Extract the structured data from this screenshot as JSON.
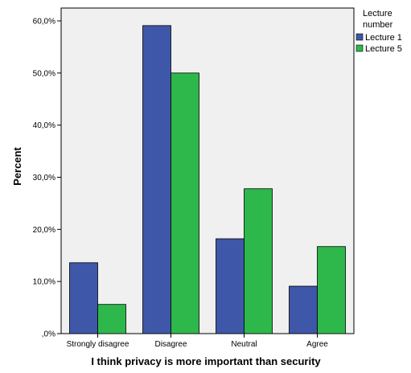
{
  "chart_data": {
    "type": "bar",
    "title": "",
    "xlabel": "I think privacy is more important than security",
    "ylabel": "Percent",
    "categories": [
      "Strongly disagree",
      "Disagree",
      "Neutral",
      "Agree"
    ],
    "series": [
      {
        "name": "Lecture 1",
        "color": "#3F57A8",
        "values": [
          13.6,
          59.1,
          18.2,
          9.1
        ]
      },
      {
        "name": "Lecture 5",
        "color": "#2EB84B",
        "values": [
          5.6,
          50.0,
          27.8,
          16.7
        ]
      }
    ],
    "ylim": [
      0,
      60
    ],
    "yticks": [
      0,
      10,
      20,
      30,
      40,
      50,
      60
    ],
    "ytick_labels": [
      ",0%",
      "10,0%",
      "20,0%",
      "30,0%",
      "40,0%",
      "50,0%",
      "60,0%"
    ],
    "legend": {
      "title": "Lecture number",
      "position": "right",
      "entries": [
        "Lecture 1",
        "Lecture 5"
      ]
    },
    "grid": false,
    "plot_background": "#F0F0F0"
  }
}
